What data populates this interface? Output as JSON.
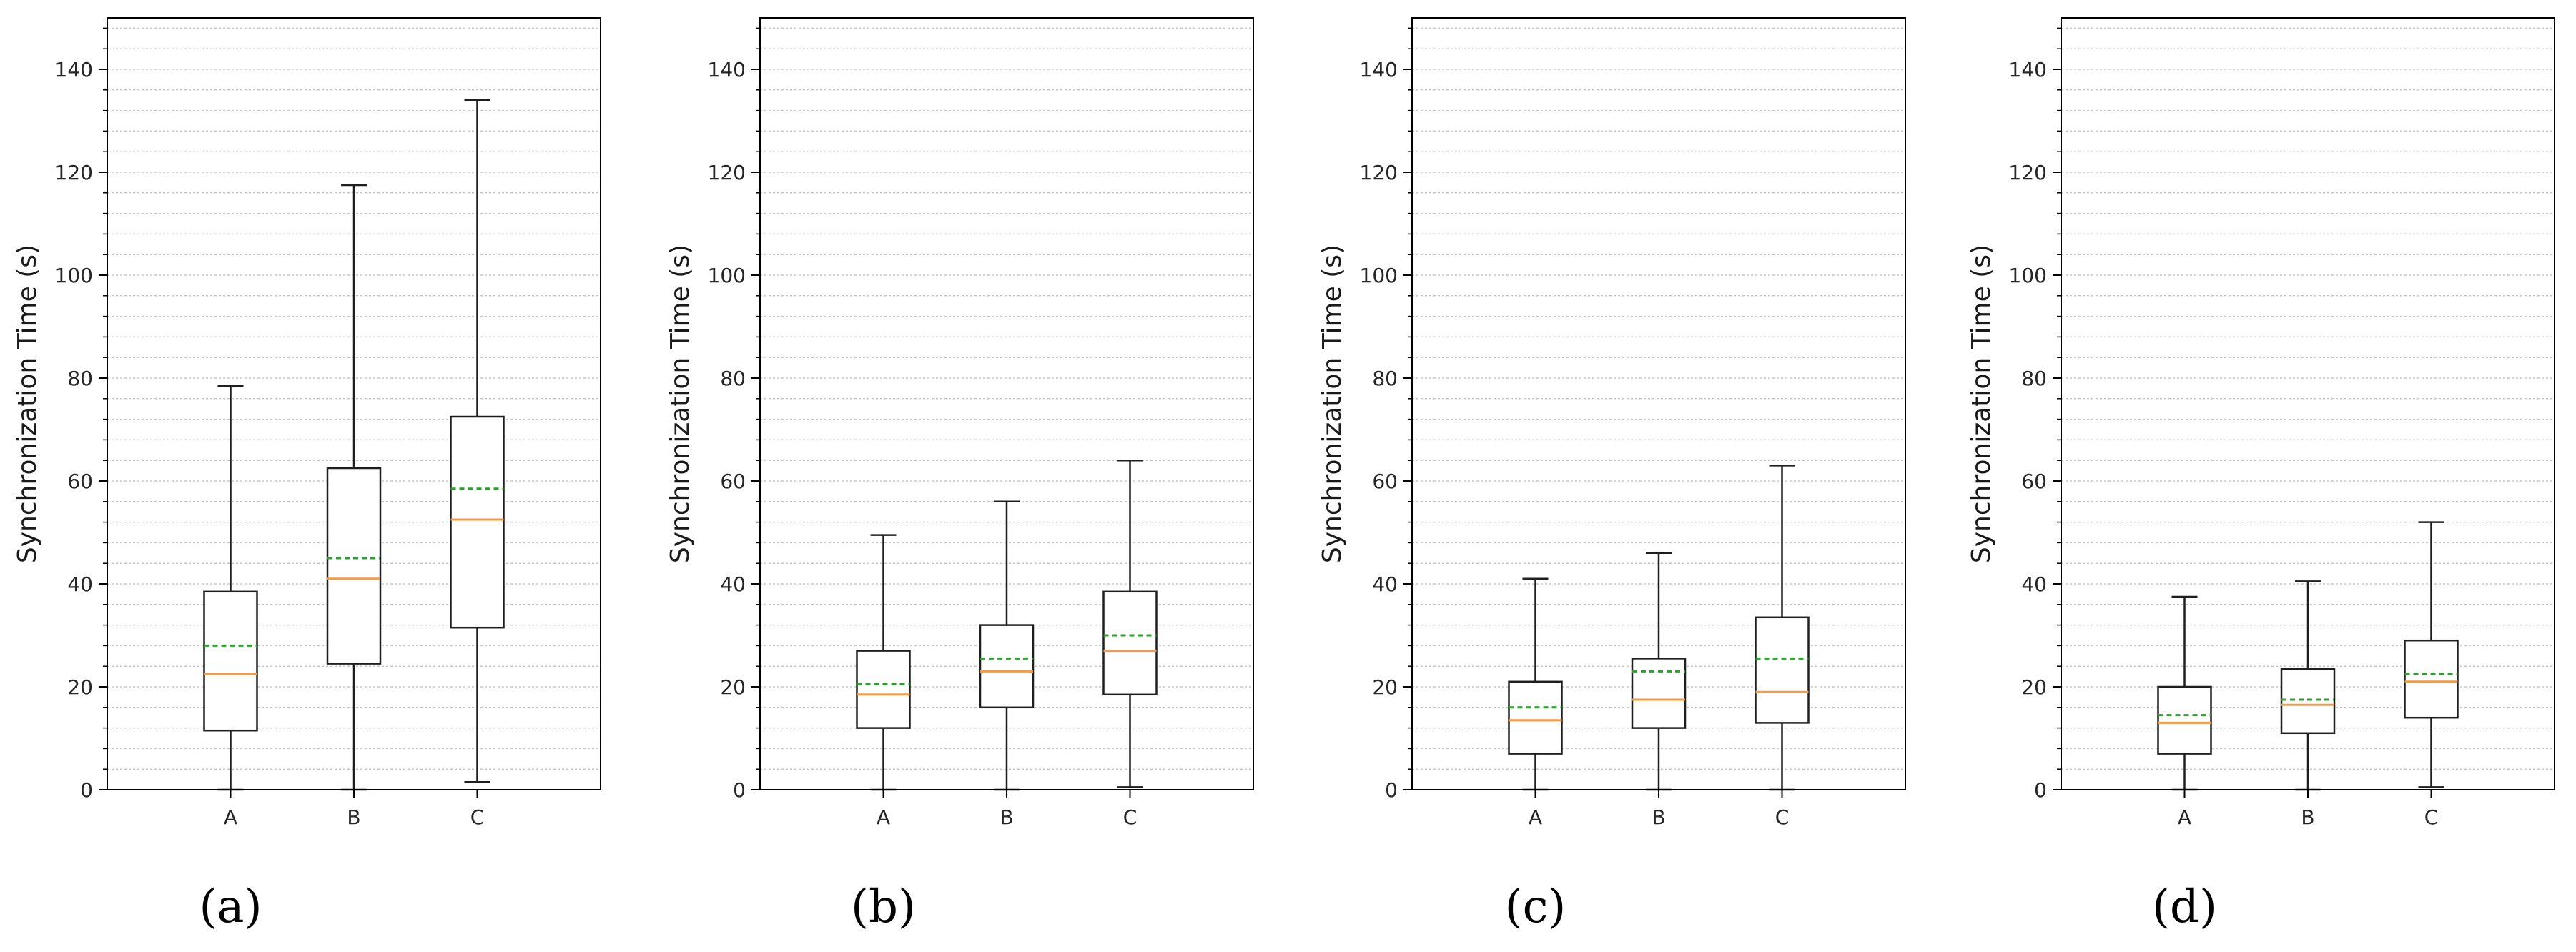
{
  "chart_data": [
    {
      "type": "box",
      "panel_label": "(a)",
      "ylabel": "Synchronization Time (s)",
      "ylim": [
        0,
        150
      ],
      "yticks": [
        0,
        20,
        40,
        60,
        80,
        100,
        120,
        140
      ],
      "grid": "horizontal minor lines every 4",
      "categories": [
        "A",
        "B",
        "C"
      ],
      "boxes": [
        {
          "min": 0,
          "q1": 11.5,
          "median": 22.5,
          "mean": 28,
          "q3": 38.5,
          "max": 78.5
        },
        {
          "min": 0,
          "q1": 24.5,
          "median": 41,
          "mean": 45,
          "q3": 62.5,
          "max": 117.5
        },
        {
          "min": 1.5,
          "q1": 31.5,
          "median": 52.5,
          "mean": 58.5,
          "q3": 72.5,
          "max": 134
        }
      ]
    },
    {
      "type": "box",
      "panel_label": "(b)",
      "ylabel": "Synchronization Time (s)",
      "ylim": [
        0,
        150
      ],
      "yticks": [
        0,
        20,
        40,
        60,
        80,
        100,
        120,
        140
      ],
      "grid": "horizontal minor lines every 4",
      "categories": [
        "A",
        "B",
        "C"
      ],
      "boxes": [
        {
          "min": 0,
          "q1": 12,
          "median": 18.5,
          "mean": 20.5,
          "q3": 27,
          "max": 49.5
        },
        {
          "min": 0,
          "q1": 16,
          "median": 23,
          "mean": 25.5,
          "q3": 32,
          "max": 56
        },
        {
          "min": 0.5,
          "q1": 18.5,
          "median": 27,
          "mean": 30,
          "q3": 38.5,
          "max": 64
        }
      ]
    },
    {
      "type": "box",
      "panel_label": "(c)",
      "ylabel": "Synchronization Time (s)",
      "ylim": [
        0,
        150
      ],
      "yticks": [
        0,
        20,
        40,
        60,
        80,
        100,
        120,
        140
      ],
      "grid": "horizontal minor lines every 4",
      "categories": [
        "A",
        "B",
        "C"
      ],
      "boxes": [
        {
          "min": 0,
          "q1": 7,
          "median": 13.5,
          "mean": 16,
          "q3": 21,
          "max": 41
        },
        {
          "min": 0,
          "q1": 12,
          "median": 17.5,
          "mean": 23,
          "q3": 25.5,
          "max": 46
        },
        {
          "min": 0,
          "q1": 13,
          "median": 19,
          "mean": 25.5,
          "q3": 33.5,
          "max": 63
        }
      ]
    },
    {
      "type": "box",
      "panel_label": "(d)",
      "ylabel": "Synchronization Time (s)",
      "ylim": [
        0,
        150
      ],
      "yticks": [
        0,
        20,
        40,
        60,
        80,
        100,
        120,
        140
      ],
      "grid": "horizontal minor lines every 4",
      "categories": [
        "A",
        "B",
        "C"
      ],
      "boxes": [
        {
          "min": 0,
          "q1": 7,
          "median": 13,
          "mean": 14.5,
          "q3": 20,
          "max": 37.5
        },
        {
          "min": 0,
          "q1": 11,
          "median": 16.5,
          "mean": 17.5,
          "q3": 23.5,
          "max": 40.5
        },
        {
          "min": 0.5,
          "q1": 14,
          "median": 21,
          "mean": 22.5,
          "q3": 29,
          "max": 52
        }
      ]
    }
  ],
  "colors": {
    "box_line": "#1f1f1f",
    "median": "#f59a45",
    "mean": "#2ca02c",
    "grid": "#c8c8c8",
    "axis": "#000000"
  }
}
